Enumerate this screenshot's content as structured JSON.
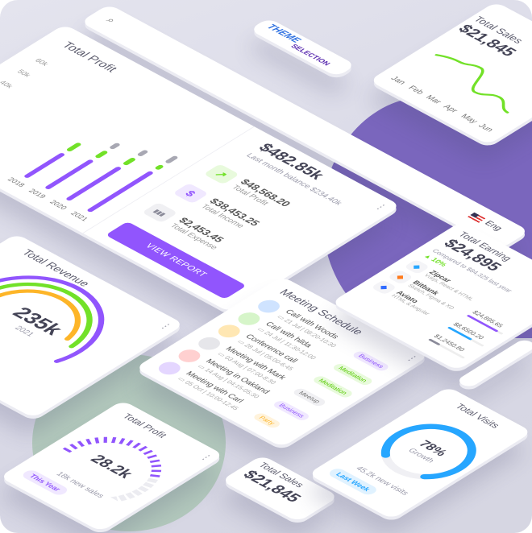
{
  "colors": {
    "primary": "#9155fd",
    "green": "#72e128",
    "gray": "#a8a8b3",
    "yellow": "#fdb528",
    "blue": "#26a6ff",
    "background": "#dcdce8"
  },
  "search": {
    "icon": "search-icon",
    "language": "Eng",
    "flag": "us-flag-icon"
  },
  "logo": {
    "line1": "THEME",
    "line2": "SELECTION"
  },
  "total_profit": {
    "title": "Total Profit",
    "y_ticks": [
      "60k",
      "50k",
      "40k"
    ],
    "years": [
      "2018",
      "2019",
      "2020",
      "2021"
    ],
    "series": [
      {
        "color": "#9155fd",
        "values": [
          24,
          28,
          32,
          38
        ]
      },
      {
        "color": "#72e128",
        "values": [
          9,
          8,
          8,
          6
        ]
      },
      {
        "color": "#a8a8b3",
        "values": [
          0,
          7,
          7,
          8
        ]
      }
    ],
    "balance": "$482.85k",
    "balance_caption": "Last month balance $234.40k",
    "items": [
      {
        "value": "$48,568.20",
        "label": "Total Profit",
        "icon": "trending-up-icon",
        "glyph": "↗"
      },
      {
        "value": "$38,453.25",
        "label": "Total Income",
        "icon": "dollar-icon",
        "glyph": "$"
      },
      {
        "value": "$2,453.45",
        "label": "Total Expense",
        "icon": "bar-chart-icon",
        "glyph": "▮▮▮"
      }
    ],
    "button": "VIEW REPORT"
  },
  "sales_line": {
    "title": "Total Sales",
    "value": "$21,845",
    "months": [
      "Jan",
      "Feb",
      "Mar",
      "Apr",
      "May",
      "Jun"
    ],
    "values": [
      22,
      26,
      30,
      10,
      16,
      8
    ]
  },
  "revenue": {
    "title": "Total Revenue",
    "value": "235k",
    "year": "2021",
    "rings": [
      {
        "color": "#9155fd",
        "fraction": 0.78
      },
      {
        "color": "#72e128",
        "fraction": 0.72
      },
      {
        "color": "#fdb528",
        "fraction": 0.7
      }
    ]
  },
  "meetings": {
    "title": "Meeting Schedule",
    "items": [
      {
        "name": "Call with Woods",
        "time": "21 Jul | 08:20-10:30",
        "tag": "Business",
        "avatar": "#cfe3ff"
      },
      {
        "name": "Call with hilda",
        "time": "24 Jul | 11:30-12:00",
        "tag": "Meditation",
        "avatar": "#d6f5c9"
      },
      {
        "name": "Conference call",
        "time": "28 Jul | 05:00-6:45",
        "tag": "Meditation",
        "avatar": "#ffe7b3"
      },
      {
        "name": "Meeting with Mark",
        "time": "03 Aug | 07:00-8:30",
        "tag": "Meetup",
        "avatar": "#e6e6ea"
      },
      {
        "name": "Meeting in Oakland",
        "time": "14 Aug | 04:15-05:30",
        "tag": "Business",
        "avatar": "#ffd0d0"
      },
      {
        "name": "Meeting with Carl",
        "time": "05 Oct | 10:00-12:45",
        "tag": "Party",
        "avatar": "#e4d6ff"
      }
    ]
  },
  "earning": {
    "title": "Total Earning",
    "value": "$24,895",
    "caption": "Compared to $84,325 last year",
    "change": "10%",
    "items": [
      {
        "name": "Zipcar",
        "desc": "Vuejs, React & HTML",
        "icon": "zipcar-icon",
        "color": "#26a6ff"
      },
      {
        "name": "Bitbank",
        "desc": "Sketch, Figma & XD",
        "icon": "bitbank-icon",
        "color": "#ff7a1a"
      },
      {
        "name": "Aviato",
        "desc": "HTML & Angular",
        "icon": "aviato-icon",
        "color": "#2f6bff"
      }
    ],
    "amounts": [
      {
        "value": "$24,895.65",
        "color": "#9155fd",
        "fraction": 0.85
      },
      {
        "value": "$8,6500.20",
        "color": "#26a6ff",
        "fraction": 0.65
      },
      {
        "value": "$1,2450.80",
        "color": "#8a8a99",
        "fraction": 0.3
      }
    ]
  },
  "profit_small": {
    "title": "Total Profit",
    "value": "28.2k",
    "caption": "18k new sales",
    "chip": "This Year",
    "fraction": 0.62
  },
  "visits": {
    "title": "Total Visits",
    "value": "78%",
    "label": "Growth",
    "caption": "45.2k new visits",
    "chip": "Last Week",
    "fraction": 0.78
  },
  "sales": {
    "title": "Total Sales",
    "value": "$21,845"
  }
}
